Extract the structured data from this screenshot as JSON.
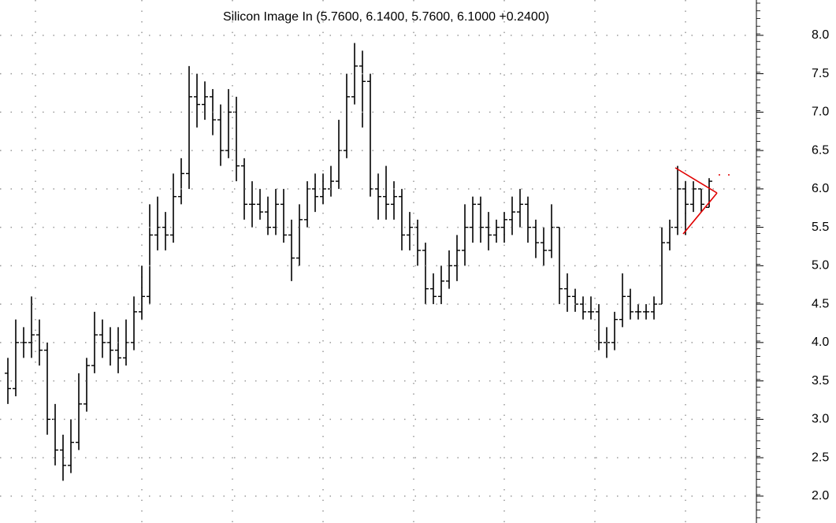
{
  "chart_data": {
    "type": "ohlc",
    "title": "Silicon Image In (5.7600, 6.1400, 5.7600, 6.1000 +0.2400)",
    "color": "#000000",
    "grid": true,
    "ylim": [
      1.65,
      8.46
    ],
    "yticks": [
      {
        "value": 2,
        "label": "2.0"
      },
      2.5,
      {
        "value": 3,
        "label": "3.0"
      },
      3.5,
      {
        "value": 4,
        "label": "4.0"
      },
      4.5,
      {
        "value": 5,
        "label": "5.0"
      },
      5.5,
      {
        "value": 6,
        "label": "6.0"
      },
      6.5,
      {
        "value": 7,
        "label": "7.0"
      },
      7.5,
      {
        "value": 8,
        "label": "8.0"
      }
    ],
    "series": {
      "open": [
        3.6,
        3.4,
        4.0,
        4.0,
        4.1,
        3.9,
        3.0,
        2.6,
        2.4,
        2.7,
        3.2,
        3.7,
        4.1,
        4.0,
        3.9,
        3.8,
        4.0,
        4.4,
        4.6,
        5.4,
        5.5,
        5.4,
        5.9,
        6.2,
        7.2,
        7.1,
        7.2,
        6.9,
        6.5,
        7.0,
        6.3,
        5.8,
        5.8,
        5.7,
        5.5,
        5.8,
        5.4,
        5.1,
        5.6,
        6.0,
        5.9,
        6.0,
        6.1,
        6.5,
        7.2,
        7.6,
        7.4,
        6.0,
        5.9,
        5.8,
        5.9,
        5.4,
        5.5,
        5.2,
        4.7,
        4.6,
        4.8,
        5.0,
        5.2,
        5.5,
        5.8,
        5.5,
        5.4,
        5.5,
        5.6,
        5.7,
        5.8,
        5.5,
        5.3,
        5.2,
        5.5,
        4.7,
        4.6,
        4.5,
        4.4,
        4.4,
        4.0,
        4.0,
        4.3,
        4.6,
        4.4,
        4.4,
        4.4,
        4.5,
        5.3,
        5.5,
        6.0,
        5.8,
        6.0,
        5.76
      ],
      "high": [
        3.8,
        4.3,
        4.2,
        4.6,
        4.3,
        4.0,
        3.2,
        2.8,
        3.0,
        3.6,
        3.8,
        4.4,
        4.3,
        4.2,
        4.2,
        4.3,
        4.6,
        5.0,
        5.8,
        5.9,
        5.7,
        6.2,
        6.4,
        7.6,
        7.5,
        7.4,
        7.3,
        7.1,
        7.3,
        7.2,
        6.4,
        6.1,
        6.0,
        5.9,
        6.0,
        6.0,
        5.6,
        5.8,
        6.1,
        6.2,
        6.2,
        6.3,
        6.9,
        7.5,
        7.9,
        7.8,
        7.5,
        6.2,
        6.3,
        6.1,
        6.0,
        5.7,
        5.6,
        5.3,
        4.9,
        5.0,
        5.2,
        5.4,
        5.8,
        5.9,
        5.9,
        5.7,
        5.6,
        5.7,
        5.9,
        6.0,
        5.9,
        5.6,
        5.5,
        5.8,
        5.5,
        4.9,
        4.7,
        4.6,
        4.6,
        4.5,
        4.2,
        4.4,
        4.9,
        4.7,
        4.5,
        4.5,
        4.6,
        5.5,
        5.6,
        6.3,
        6.1,
        6.1,
        6.0,
        6.14
      ],
      "low": [
        3.2,
        3.3,
        3.8,
        3.8,
        3.7,
        2.8,
        2.4,
        2.2,
        2.3,
        2.6,
        3.1,
        3.6,
        3.8,
        3.7,
        3.6,
        3.7,
        3.9,
        4.3,
        4.5,
        5.2,
        5.2,
        5.3,
        5.8,
        6.0,
        6.8,
        6.9,
        6.7,
        6.3,
        6.4,
        6.1,
        5.6,
        5.5,
        5.6,
        5.4,
        5.4,
        5.3,
        4.8,
        5.0,
        5.5,
        5.7,
        5.8,
        5.9,
        6.0,
        6.4,
        7.1,
        6.8,
        5.9,
        5.6,
        5.6,
        5.6,
        5.2,
        5.2,
        5.0,
        4.5,
        4.5,
        4.5,
        4.7,
        4.8,
        5.0,
        5.3,
        5.3,
        5.2,
        5.3,
        5.3,
        5.4,
        5.5,
        5.3,
        5.1,
        5.0,
        5.1,
        4.5,
        4.4,
        4.4,
        4.3,
        4.3,
        3.9,
        3.8,
        3.9,
        4.2,
        4.3,
        4.3,
        4.3,
        4.3,
        4.5,
        5.2,
        5.4,
        5.4,
        5.7,
        5.7,
        5.76
      ],
      "close": [
        3.4,
        4.0,
        4.0,
        4.1,
        3.9,
        3.0,
        2.6,
        2.4,
        2.7,
        3.2,
        3.7,
        4.1,
        4.0,
        3.9,
        3.8,
        4.0,
        4.4,
        4.6,
        5.4,
        5.5,
        5.4,
        5.9,
        6.2,
        7.2,
        7.1,
        7.2,
        6.9,
        6.5,
        7.0,
        6.3,
        5.8,
        5.8,
        5.7,
        5.5,
        5.8,
        5.4,
        5.1,
        5.6,
        6.0,
        5.9,
        6.0,
        6.1,
        6.5,
        7.2,
        7.6,
        7.4,
        6.0,
        5.9,
        5.8,
        5.9,
        5.4,
        5.5,
        5.2,
        4.7,
        4.6,
        4.8,
        5.0,
        5.2,
        5.5,
        5.8,
        5.5,
        5.4,
        5.5,
        5.6,
        5.7,
        5.8,
        5.5,
        5.3,
        5.2,
        5.5,
        4.7,
        4.6,
        4.5,
        4.4,
        4.4,
        4.0,
        4.0,
        4.3,
        4.6,
        4.4,
        4.4,
        4.4,
        4.5,
        5.3,
        5.5,
        6.0,
        5.8,
        6.0,
        5.8,
        6.1
      ]
    }
  }
}
